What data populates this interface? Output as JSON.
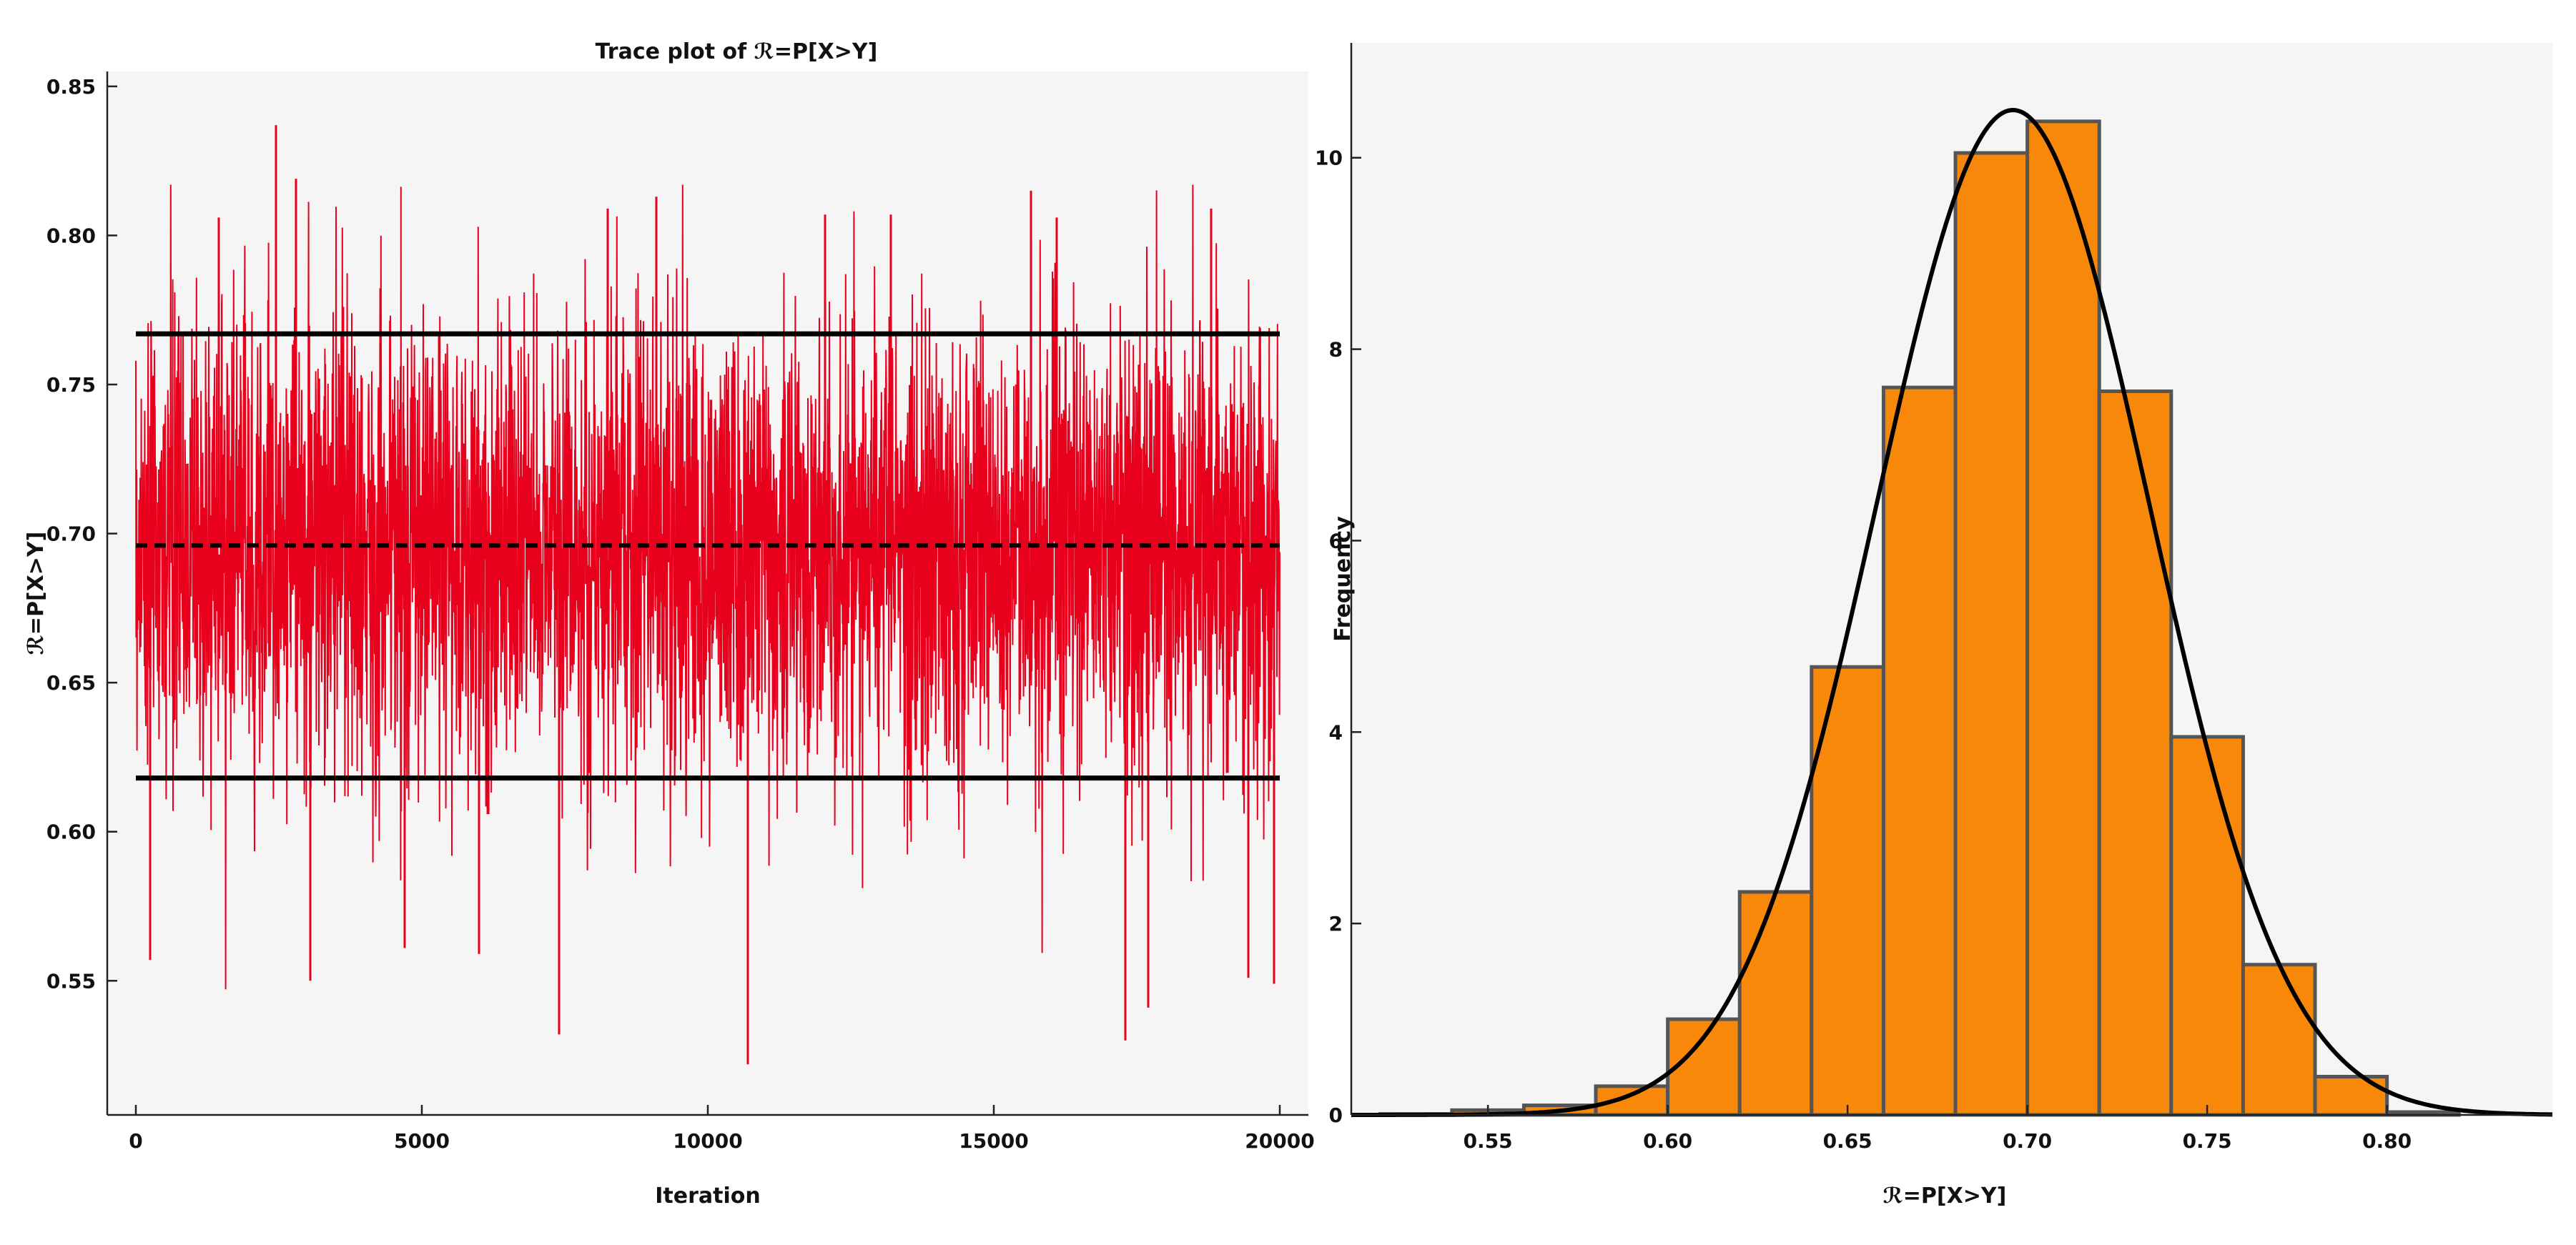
{
  "chart_data": [
    {
      "type": "line",
      "title": "Trace plot of ℛ=P[X>Y]",
      "xlabel": "Iteration",
      "ylabel": "ℛ=P[X>Y]",
      "xlim": [
        -500,
        20500
      ],
      "ylim": [
        0.505,
        0.855
      ],
      "xticks": [
        0,
        5000,
        10000,
        15000,
        20000
      ],
      "xtick_labels": [
        "0",
        "5000",
        "10000",
        "15000",
        "20000"
      ],
      "yticks": [
        0.55,
        0.6,
        0.65,
        0.7,
        0.75,
        0.8,
        0.85
      ],
      "ytick_labels": [
        "0.55",
        "0.60",
        "0.65",
        "0.70",
        "0.75",
        "0.80",
        "0.85"
      ],
      "series": [
        {
          "kind": "trace",
          "iterations": 20000,
          "mean": 0.696,
          "sd": 0.038,
          "min": 0.522,
          "max": 0.837,
          "color": "#e8001d"
        }
      ],
      "reference_lines": [
        {
          "label": "",
          "value": 0.767,
          "style": "solid",
          "color": "#000000"
        },
        {
          "label": "",
          "value": 0.696,
          "style": "dashed",
          "color": "#000000"
        },
        {
          "label": "",
          "value": 0.618,
          "style": "solid",
          "color": "#000000"
        }
      ],
      "spikes": [
        {
          "x": 250,
          "y": 0.557
        },
        {
          "x": 1450,
          "y": 0.806
        },
        {
          "x": 2450,
          "y": 0.837
        },
        {
          "x": 2800,
          "y": 0.819
        },
        {
          "x": 3050,
          "y": 0.55
        },
        {
          "x": 4700,
          "y": 0.561
        },
        {
          "x": 6000,
          "y": 0.559
        },
        {
          "x": 7400,
          "y": 0.532
        },
        {
          "x": 8250,
          "y": 0.809
        },
        {
          "x": 9100,
          "y": 0.813
        },
        {
          "x": 10700,
          "y": 0.522
        },
        {
          "x": 12050,
          "y": 0.807
        },
        {
          "x": 13200,
          "y": 0.807
        },
        {
          "x": 15650,
          "y": 0.815
        },
        {
          "x": 16100,
          "y": 0.806
        },
        {
          "x": 17300,
          "y": 0.53
        },
        {
          "x": 17700,
          "y": 0.541
        },
        {
          "x": 18800,
          "y": 0.809
        },
        {
          "x": 19450,
          "y": 0.551
        },
        {
          "x": 19900,
          "y": 0.549
        }
      ],
      "grid": false,
      "background": "#f5f5f5"
    },
    {
      "type": "bar",
      "title": "",
      "xlabel": "ℛ=P[X>Y]",
      "ylabel": "Frequency",
      "xlim": [
        0.512,
        0.846
      ],
      "ylim": [
        0,
        11.2
      ],
      "xticks": [
        0.55,
        0.6,
        0.65,
        0.7,
        0.75,
        0.8
      ],
      "xtick_labels": [
        "0.55",
        "0.60",
        "0.65",
        "0.70",
        "0.75",
        "0.80"
      ],
      "yticks": [
        0,
        2,
        4,
        6,
        8,
        10
      ],
      "ytick_labels": [
        "0",
        "2",
        "4",
        "6",
        "8",
        "10"
      ],
      "bin_edges": [
        0.52,
        0.54,
        0.56,
        0.58,
        0.6,
        0.62,
        0.64,
        0.66,
        0.68,
        0.7,
        0.72,
        0.74,
        0.76,
        0.78,
        0.8,
        0.82
      ],
      "values": [
        0.01,
        0.05,
        0.1,
        0.3,
        1.0,
        2.33,
        4.68,
        7.6,
        10.05,
        10.38,
        7.56,
        3.95,
        1.57,
        0.4,
        0.03
      ],
      "fit_curve": {
        "kind": "normal",
        "mean": 0.696,
        "sd": 0.038
      },
      "bar_color": "#f7880a",
      "edge_color": "#555555",
      "grid": false,
      "background": "#f5f5f5"
    }
  ]
}
